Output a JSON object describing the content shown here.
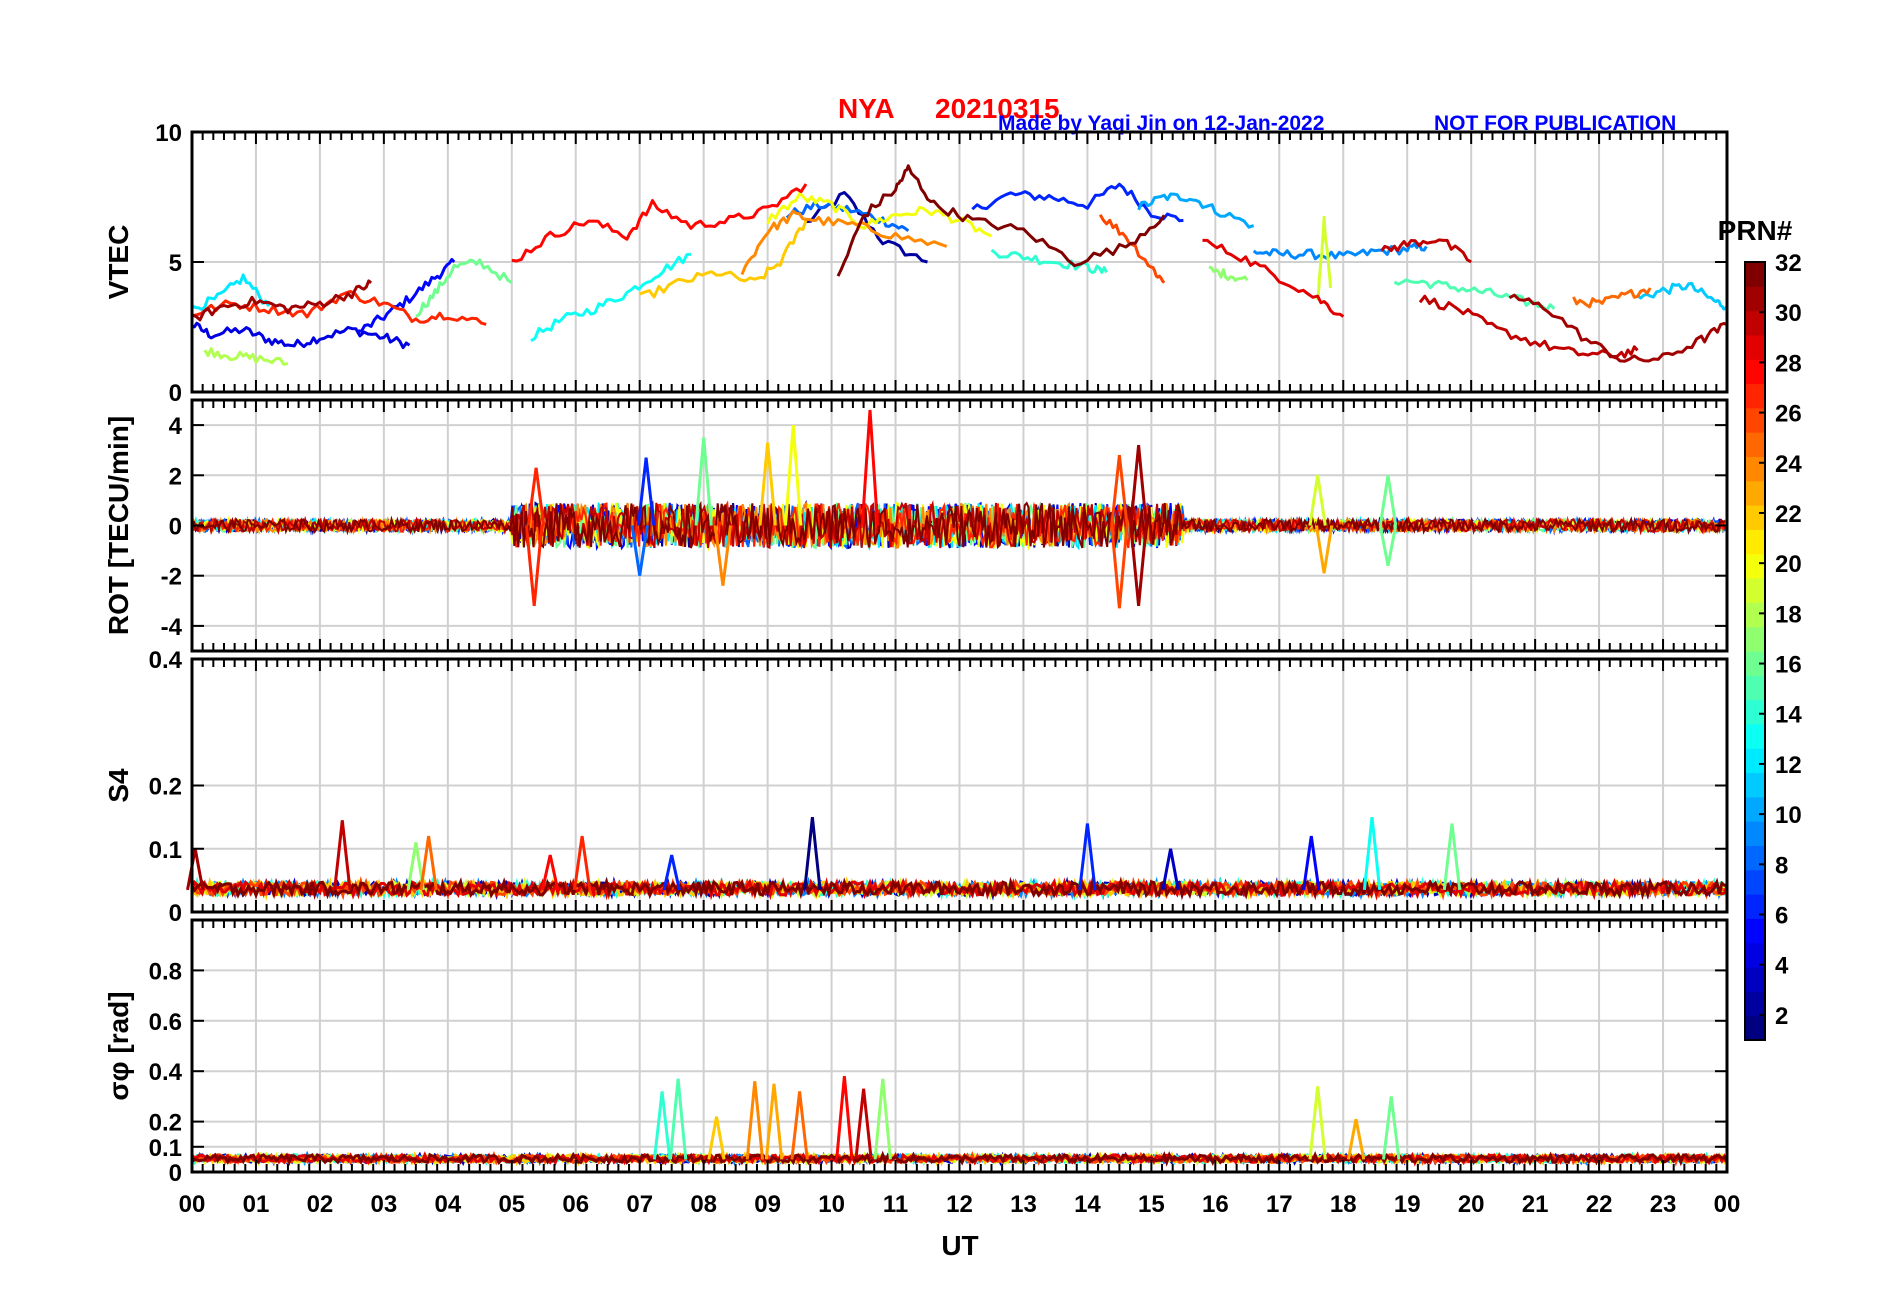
{
  "chart_data": {
    "type": "line",
    "title": {
      "station": "NYA",
      "date": "20210315",
      "made_by": "Made by Yaqi Jin on 12-Jan-2022",
      "notice": "NOT FOR PUBLICATION"
    },
    "xlabel": "UT",
    "xlim": [
      0,
      24
    ],
    "x_ticks": [
      "00",
      "01",
      "02",
      "03",
      "04",
      "05",
      "06",
      "07",
      "08",
      "09",
      "10",
      "11",
      "12",
      "13",
      "14",
      "15",
      "16",
      "17",
      "18",
      "19",
      "20",
      "21",
      "22",
      "23",
      "00"
    ],
    "colorbar": {
      "label": "PRN#",
      "range": [
        1,
        32
      ],
      "ticks": [
        "2",
        "4",
        "6",
        "8",
        "10",
        "12",
        "14",
        "16",
        "18",
        "20",
        "22",
        "24",
        "26",
        "28",
        "30",
        "32"
      ]
    },
    "panels": [
      {
        "id": "vtec",
        "ylabel": "VTEC",
        "ylim": [
          0,
          10
        ],
        "yticks": [
          "0",
          "5",
          "10"
        ],
        "series": [
          {
            "prn": 2,
            "x": [
              9.6,
              10.2,
              10.8,
              11.5
            ],
            "y": [
              6.5,
              7.6,
              5.8,
              5.0
            ]
          },
          {
            "prn": 4,
            "x": [
              0.0,
              0.3,
              0.8,
              1.2,
              1.6,
              2.0,
              2.5,
              3.0,
              3.4
            ],
            "y": [
              2.6,
              2.2,
              2.4,
              2.0,
              1.8,
              2.1,
              2.4,
              2.1,
              1.8
            ]
          },
          {
            "prn": 5,
            "x": [
              2.6,
              3.0,
              3.4,
              3.8,
              4.1
            ],
            "y": [
              2.3,
              2.9,
              3.6,
              4.4,
              5.0
            ]
          },
          {
            "prn": 6,
            "x": [
              12.2,
              12.8,
              13.4,
              14.0,
              14.5,
              15.0,
              15.5
            ],
            "y": [
              7.0,
              7.6,
              7.5,
              7.2,
              8.0,
              6.9,
              6.6
            ]
          },
          {
            "prn": 8,
            "x": [
              9.3,
              9.8,
              10.3,
              10.8,
              11.2
            ],
            "y": [
              6.8,
              7.2,
              7.0,
              6.6,
              6.2
            ]
          },
          {
            "prn": 9,
            "x": [
              16.6,
              17.0,
              17.5,
              18.0,
              18.5,
              19.0,
              19.3
            ],
            "y": [
              5.4,
              5.3,
              5.3,
              5.2,
              5.4,
              5.5,
              5.6
            ]
          },
          {
            "prn": 10,
            "x": [
              14.8,
              15.2,
              15.6,
              16.0,
              16.6
            ],
            "y": [
              7.1,
              7.5,
              7.5,
              7.0,
              6.4
            ]
          },
          {
            "prn": 11,
            "x": [
              22.6,
              23.0,
              23.4,
              23.8,
              24.0
            ],
            "y": [
              3.6,
              3.9,
              4.1,
              3.5,
              3.3
            ]
          },
          {
            "prn": 12,
            "x": [
              0.0,
              0.4,
              0.8,
              1.2
            ],
            "y": [
              3.2,
              3.6,
              4.4,
              3.3
            ]
          },
          {
            "prn": 13,
            "x": [
              5.3,
              5.8,
              6.3,
              6.8,
              7.3,
              7.8
            ],
            "y": [
              2.1,
              2.8,
              3.2,
              3.8,
              4.6,
              5.3
            ]
          },
          {
            "prn": 14,
            "x": [
              12.5,
              13.0,
              13.5,
              14.0,
              14.3
            ],
            "y": [
              5.4,
              5.2,
              5.0,
              4.8,
              4.6
            ]
          },
          {
            "prn": 15,
            "x": [
              18.8,
              19.3,
              19.8,
              20.3,
              20.8,
              21.3
            ],
            "y": [
              4.3,
              4.2,
              4.0,
              3.8,
              3.5,
              3.2
            ]
          },
          {
            "prn": 16,
            "x": [
              3.5,
              3.8,
              4.1,
              4.5,
              5.0
            ],
            "y": [
              3.0,
              3.8,
              4.8,
              5.0,
              4.2
            ]
          },
          {
            "prn": 17,
            "x": [
              15.9,
              16.2,
              16.5
            ],
            "y": [
              4.7,
              4.5,
              4.3
            ]
          },
          {
            "prn": 18,
            "x": [
              0.2,
              0.6,
              1.0,
              1.5
            ],
            "y": [
              1.6,
              1.4,
              1.3,
              1.1
            ]
          },
          {
            "prn": 19,
            "x": [
              17.6,
              17.7,
              17.8
            ],
            "y": [
              3.5,
              6.6,
              4.0
            ]
          },
          {
            "prn": 20,
            "x": [
              9.0,
              9.5,
              10.0,
              10.5,
              11.0,
              11.5,
              12.0,
              12.5
            ],
            "y": [
              6.6,
              7.5,
              7.2,
              6.4,
              6.8,
              7.0,
              6.6,
              6.0
            ]
          },
          {
            "prn": 22,
            "x": [
              7.0,
              7.6,
              8.2,
              8.8,
              9.2,
              9.6
            ],
            "y": [
              3.6,
              4.2,
              4.6,
              4.2,
              5.0,
              6.6
            ]
          },
          {
            "prn": 24,
            "x": [
              8.6,
              9.0,
              9.4,
              9.8,
              10.4,
              11.0,
              11.8
            ],
            "y": [
              4.6,
              6.2,
              6.8,
              6.6,
              6.4,
              6.0,
              5.6
            ]
          },
          {
            "prn": 25,
            "x": [
              21.6,
              22.0,
              22.4,
              22.8
            ],
            "y": [
              3.5,
              3.4,
              3.7,
              4.0
            ]
          },
          {
            "prn": 26,
            "x": [
              14.2,
              14.6,
              15.0,
              15.2
            ],
            "y": [
              6.8,
              6.0,
              4.8,
              4.2
            ]
          },
          {
            "prn": 27,
            "x": [
              0.0,
              0.6,
              1.2,
              1.8,
              2.4,
              3.0,
              3.5,
              4.0,
              4.6
            ],
            "y": [
              3.0,
              3.4,
              3.2,
              3.0,
              3.8,
              3.4,
              2.8,
              3.0,
              2.6
            ]
          },
          {
            "prn": 28,
            "x": [
              5.0,
              5.6,
              6.2,
              6.8,
              7.2,
              7.8,
              8.4,
              9.0,
              9.6
            ],
            "y": [
              5.0,
              6.0,
              6.6,
              6.0,
              7.2,
              6.4,
              6.6,
              7.0,
              8.0
            ]
          },
          {
            "prn": 29,
            "x": [
              15.8,
              16.4,
              17.0,
              17.6,
              18.0
            ],
            "y": [
              5.8,
              5.2,
              4.4,
              3.6,
              2.9
            ]
          },
          {
            "prn": 30,
            "x": [
              19.2,
              19.8,
              20.4,
              21.0,
              21.6,
              22.2,
              22.6
            ],
            "y": [
              3.6,
              3.2,
              2.4,
              1.9,
              1.5,
              1.4,
              1.6
            ]
          },
          {
            "prn": 31,
            "x": [
              0.0,
              0.5,
              1.0,
              1.5,
              2.0,
              2.5,
              2.8
            ],
            "y": [
              2.8,
              3.3,
              3.5,
              3.2,
              3.4,
              3.8,
              4.2
            ]
          },
          {
            "prn": 32,
            "x": [
              10.1,
              10.5,
              11.0,
              11.2,
              11.6,
              12.2,
              13.0,
              13.8,
              14.6,
              15.2
            ],
            "y": [
              4.4,
              6.8,
              7.8,
              8.6,
              7.2,
              6.6,
              6.2,
              5.0,
              5.6,
              6.8
            ]
          },
          {
            "prn": 30,
            "x": [
              18.6,
              19.0,
              19.5,
              20.0
            ],
            "y": [
              5.4,
              5.7,
              5.9,
              5.0
            ]
          },
          {
            "prn": 31,
            "x": [
              20.6,
              21.2,
              21.8,
              22.4,
              23.0,
              23.6,
              24.0
            ],
            "y": [
              3.7,
              3.2,
              2.0,
              1.2,
              1.3,
              2.0,
              2.6
            ]
          }
        ]
      },
      {
        "id": "rot",
        "ylabel": "ROT [TECU/min]",
        "ylim": [
          -5,
          5
        ],
        "yticks": [
          "-4",
          "-2",
          "0",
          "2",
          "4"
        ],
        "spikes": [
          {
            "prn": 27,
            "x": 5.35,
            "y": -3.2
          },
          {
            "prn": 27,
            "x": 5.38,
            "y": 2.3
          },
          {
            "prn": 8,
            "x": 7.0,
            "y": -2.0
          },
          {
            "prn": 6,
            "x": 7.1,
            "y": 2.7
          },
          {
            "prn": 16,
            "x": 8.0,
            "y": 3.5
          },
          {
            "prn": 24,
            "x": 8.3,
            "y": -2.4
          },
          {
            "prn": 20,
            "x": 9.4,
            "y": 4.0
          },
          {
            "prn": 22,
            "x": 9.0,
            "y": 3.3
          },
          {
            "prn": 28,
            "x": 10.6,
            "y": 4.6
          },
          {
            "prn": 26,
            "x": 14.5,
            "y": 2.8
          },
          {
            "prn": 26,
            "x": 14.5,
            "y": -3.3
          },
          {
            "prn": 31,
            "x": 14.8,
            "y": 3.2
          },
          {
            "prn": 31,
            "x": 14.8,
            "y": -3.2
          },
          {
            "prn": 19,
            "x": 17.6,
            "y": 2.0
          },
          {
            "prn": 23,
            "x": 17.7,
            "y": -1.9
          },
          {
            "prn": 16,
            "x": 18.7,
            "y": 2.0
          },
          {
            "prn": 16,
            "x": 18.7,
            "y": -1.6
          }
        ]
      },
      {
        "id": "s4",
        "ylabel": "S4",
        "ylim": [
          0,
          0.4
        ],
        "yticks": [
          "0",
          "0.1",
          "0.2",
          "0.4"
        ],
        "baseline": 0.035,
        "spikes": [
          {
            "prn": 31,
            "x": 0.05,
            "y": 0.1
          },
          {
            "prn": 30,
            "x": 2.35,
            "y": 0.145
          },
          {
            "prn": 17,
            "x": 3.5,
            "y": 0.11
          },
          {
            "prn": 25,
            "x": 3.7,
            "y": 0.12
          },
          {
            "prn": 28,
            "x": 5.6,
            "y": 0.09
          },
          {
            "prn": 27,
            "x": 6.1,
            "y": 0.12
          },
          {
            "prn": 6,
            "x": 7.5,
            "y": 0.09
          },
          {
            "prn": 1,
            "x": 9.7,
            "y": 0.15
          },
          {
            "prn": 6,
            "x": 14.0,
            "y": 0.14
          },
          {
            "prn": 3,
            "x": 15.3,
            "y": 0.1
          },
          {
            "prn": 5,
            "x": 17.5,
            "y": 0.12
          },
          {
            "prn": 13,
            "x": 18.45,
            "y": 0.15
          },
          {
            "prn": 16,
            "x": 19.7,
            "y": 0.14
          }
        ]
      },
      {
        "id": "sigma",
        "ylabel": "σφ [rad]",
        "ylim": [
          0,
          1.0
        ],
        "yticks": [
          "0",
          "0.1",
          "0.2",
          "0.4",
          "0.6",
          "0.8"
        ],
        "baseline": 0.05,
        "spikes": [
          {
            "prn": 14,
            "x": 7.35,
            "y": 0.32
          },
          {
            "prn": 15,
            "x": 7.6,
            "y": 0.37
          },
          {
            "prn": 22,
            "x": 8.2,
            "y": 0.22
          },
          {
            "prn": 24,
            "x": 8.8,
            "y": 0.36
          },
          {
            "prn": 23,
            "x": 9.1,
            "y": 0.35
          },
          {
            "prn": 25,
            "x": 9.5,
            "y": 0.32
          },
          {
            "prn": 28,
            "x": 10.2,
            "y": 0.38
          },
          {
            "prn": 30,
            "x": 10.5,
            "y": 0.33
          },
          {
            "prn": 17,
            "x": 10.8,
            "y": 0.37
          },
          {
            "prn": 19,
            "x": 17.6,
            "y": 0.34
          },
          {
            "prn": 23,
            "x": 18.2,
            "y": 0.21
          },
          {
            "prn": 16,
            "x": 18.75,
            "y": 0.3
          }
        ]
      }
    ]
  }
}
